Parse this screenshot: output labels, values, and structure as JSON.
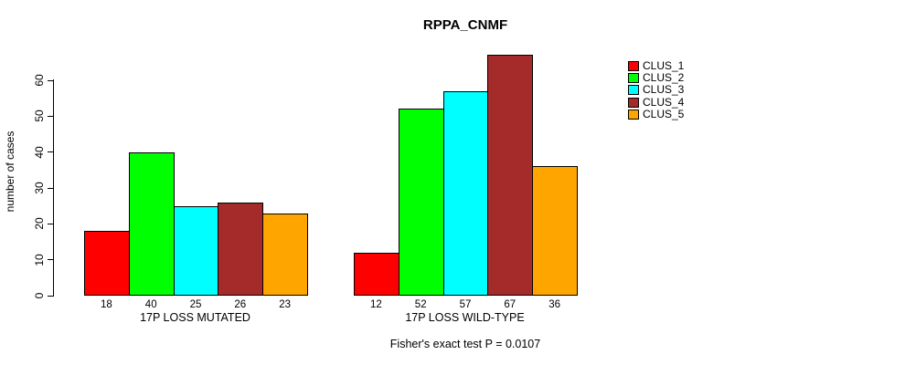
{
  "title": "RPPA_CNMF",
  "caption": "Fisher's exact test P = 0.0107",
  "chart_data": {
    "type": "bar",
    "title": "RPPA_CNMF",
    "xlabel": "",
    "ylabel": "number of cases",
    "ylim": [
      0,
      60
    ],
    "yticks": [
      0,
      10,
      20,
      30,
      40,
      50,
      60
    ],
    "grid": false,
    "legend_position": "right-outside",
    "categories": [
      "17P LOSS MUTATED",
      "17P LOSS WILD-TYPE"
    ],
    "groups": [
      {
        "label": "17P LOSS MUTATED",
        "values": [
          18,
          40,
          25,
          26,
          23
        ]
      },
      {
        "label": "17P LOSS WILD-TYPE",
        "values": [
          12,
          52,
          57,
          67,
          36
        ]
      }
    ],
    "series": [
      {
        "name": "CLUS_1",
        "color": "#FF0000",
        "values": [
          18,
          12
        ]
      },
      {
        "name": "CLUS_2",
        "color": "#00FF00",
        "values": [
          40,
          52
        ]
      },
      {
        "name": "CLUS_3",
        "color": "#00FFFF",
        "values": [
          25,
          57
        ]
      },
      {
        "name": "CLUS_4",
        "color": "#A52A2A",
        "values": [
          26,
          67
        ]
      },
      {
        "name": "CLUS_5",
        "color": "#FFA500",
        "values": [
          23,
          36
        ]
      }
    ],
    "annotation": "Fisher's exact test P = 0.0107",
    "axis_color": "#000000",
    "bar_border_color": "#000000",
    "background_color": "#FFFFFF"
  }
}
